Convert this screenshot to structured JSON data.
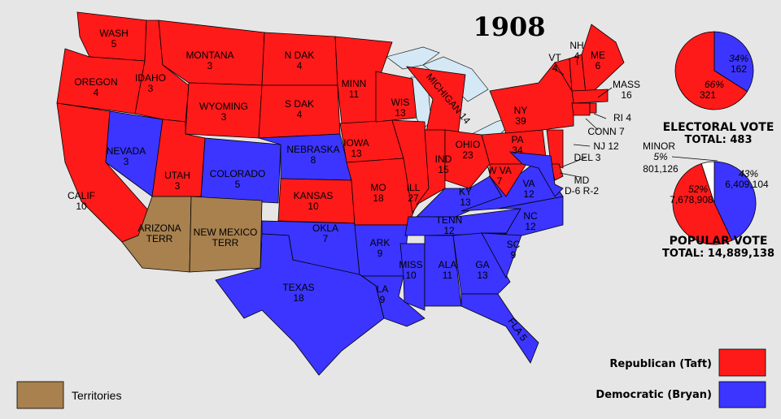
{
  "title": "1908",
  "colors": {
    "republican": "#ff1a1a",
    "democratic": "#3b35ff",
    "territory": "#a8814f",
    "lakes": "#d4e8f5",
    "background": "#e6e6e6"
  },
  "states": [
    {
      "id": "WA",
      "name": "WASH",
      "votes": "5",
      "party": "republican"
    },
    {
      "id": "OR",
      "name": "OREGON",
      "votes": "4",
      "party": "republican"
    },
    {
      "id": "CA",
      "name": "CALIF",
      "votes": "10",
      "party": "republican"
    },
    {
      "id": "NV",
      "name": "NEVADA",
      "votes": "3",
      "party": "democratic"
    },
    {
      "id": "ID",
      "name": "IDAHO",
      "votes": "3",
      "party": "republican"
    },
    {
      "id": "MT",
      "name": "MONTANA",
      "votes": "3",
      "party": "republican"
    },
    {
      "id": "WY",
      "name": "WYOMING",
      "votes": "3",
      "party": "republican"
    },
    {
      "id": "UT",
      "name": "UTAH",
      "votes": "3",
      "party": "republican"
    },
    {
      "id": "CO",
      "name": "COLORADO",
      "votes": "5",
      "party": "democratic"
    },
    {
      "id": "AZ",
      "name": "ARIZONA",
      "votes": "TERR",
      "party": "territory"
    },
    {
      "id": "NM",
      "name": "NEW MEXICO",
      "votes": "TERR",
      "party": "territory"
    },
    {
      "id": "ND",
      "name": "N DAK",
      "votes": "4",
      "party": "republican"
    },
    {
      "id": "SD",
      "name": "S DAK",
      "votes": "4",
      "party": "republican"
    },
    {
      "id": "NE",
      "name": "NEBRASKA",
      "votes": "8",
      "party": "democratic"
    },
    {
      "id": "KS",
      "name": "KANSAS",
      "votes": "10",
      "party": "republican"
    },
    {
      "id": "OK",
      "name": "OKLA",
      "votes": "7",
      "party": "democratic"
    },
    {
      "id": "TX",
      "name": "TEXAS",
      "votes": "18",
      "party": "democratic"
    },
    {
      "id": "MN",
      "name": "MINN",
      "votes": "11",
      "party": "republican"
    },
    {
      "id": "IA",
      "name": "IOWA",
      "votes": "13",
      "party": "republican"
    },
    {
      "id": "MO",
      "name": "MO",
      "votes": "18",
      "party": "republican"
    },
    {
      "id": "AR",
      "name": "ARK",
      "votes": "9",
      "party": "democratic"
    },
    {
      "id": "LA",
      "name": "LA",
      "votes": "9",
      "party": "democratic"
    },
    {
      "id": "WI",
      "name": "WIS",
      "votes": "13",
      "party": "republican"
    },
    {
      "id": "MI",
      "name": "MICHIGAN 14",
      "votes": "",
      "party": "republican"
    },
    {
      "id": "IL",
      "name": "ILL",
      "votes": "27",
      "party": "republican"
    },
    {
      "id": "IN",
      "name": "IND",
      "votes": "15",
      "party": "republican"
    },
    {
      "id": "OH",
      "name": "OHIO",
      "votes": "23",
      "party": "republican"
    },
    {
      "id": "KY",
      "name": "KY",
      "votes": "13",
      "party": "democratic"
    },
    {
      "id": "TN",
      "name": "TENN",
      "votes": "12",
      "party": "democratic"
    },
    {
      "id": "MS",
      "name": "MISS",
      "votes": "10",
      "party": "democratic"
    },
    {
      "id": "AL",
      "name": "ALA",
      "votes": "11",
      "party": "democratic"
    },
    {
      "id": "GA",
      "name": "GA",
      "votes": "13",
      "party": "democratic"
    },
    {
      "id": "FL",
      "name": "FLA 5",
      "votes": "",
      "party": "democratic"
    },
    {
      "id": "SC",
      "name": "SC",
      "votes": "9",
      "party": "democratic"
    },
    {
      "id": "NC",
      "name": "NC",
      "votes": "12",
      "party": "democratic"
    },
    {
      "id": "VA",
      "name": "VA",
      "votes": "12",
      "party": "democratic"
    },
    {
      "id": "WV",
      "name": "W VA",
      "votes": "7",
      "party": "republican"
    },
    {
      "id": "PA",
      "name": "PA",
      "votes": "34",
      "party": "republican"
    },
    {
      "id": "NY",
      "name": "NY",
      "votes": "39",
      "party": "republican"
    },
    {
      "id": "NJ",
      "name": "NJ 12",
      "votes": "",
      "party": "republican"
    },
    {
      "id": "DE",
      "name": "DEL 3",
      "votes": "",
      "party": "republican"
    },
    {
      "id": "MD",
      "name": "MD",
      "votes": "D-6  R-2",
      "party": "democratic"
    },
    {
      "id": "VT",
      "name": "VT",
      "votes": "4",
      "party": "republican"
    },
    {
      "id": "NH",
      "name": "NH",
      "votes": "4",
      "party": "republican"
    },
    {
      "id": "ME",
      "name": "ME",
      "votes": "6",
      "party": "republican"
    },
    {
      "id": "MA",
      "name": "MASS",
      "votes": "16",
      "party": "republican"
    },
    {
      "id": "CT",
      "name": "CONN 7",
      "votes": "",
      "party": "republican"
    },
    {
      "id": "RI",
      "name": "RI 4",
      "votes": "",
      "party": "republican"
    }
  ],
  "electoral": {
    "republican": {
      "pct": "66%",
      "value": "321",
      "fraction": 0.66
    },
    "democratic": {
      "pct": "34%",
      "value": "162",
      "fraction": 0.34
    },
    "label": "ELECTORAL  VOTE",
    "total": "TOTAL:  483"
  },
  "popular": {
    "republican": {
      "pct": "52%",
      "value": "7,678,908",
      "fraction": 0.52
    },
    "democratic": {
      "pct": "43%",
      "value": "6,409,104",
      "fraction": 0.43
    },
    "minor": {
      "label": "MINOR",
      "pct": "5%",
      "value": "801,126",
      "fraction": 0.05
    },
    "label": "POPULAR  VOTE",
    "total": "TOTAL:  14,889,138"
  },
  "legend": {
    "republican": "Republican (Taft)",
    "democratic": "Democratic (Bryan)",
    "territories": "Territories"
  }
}
